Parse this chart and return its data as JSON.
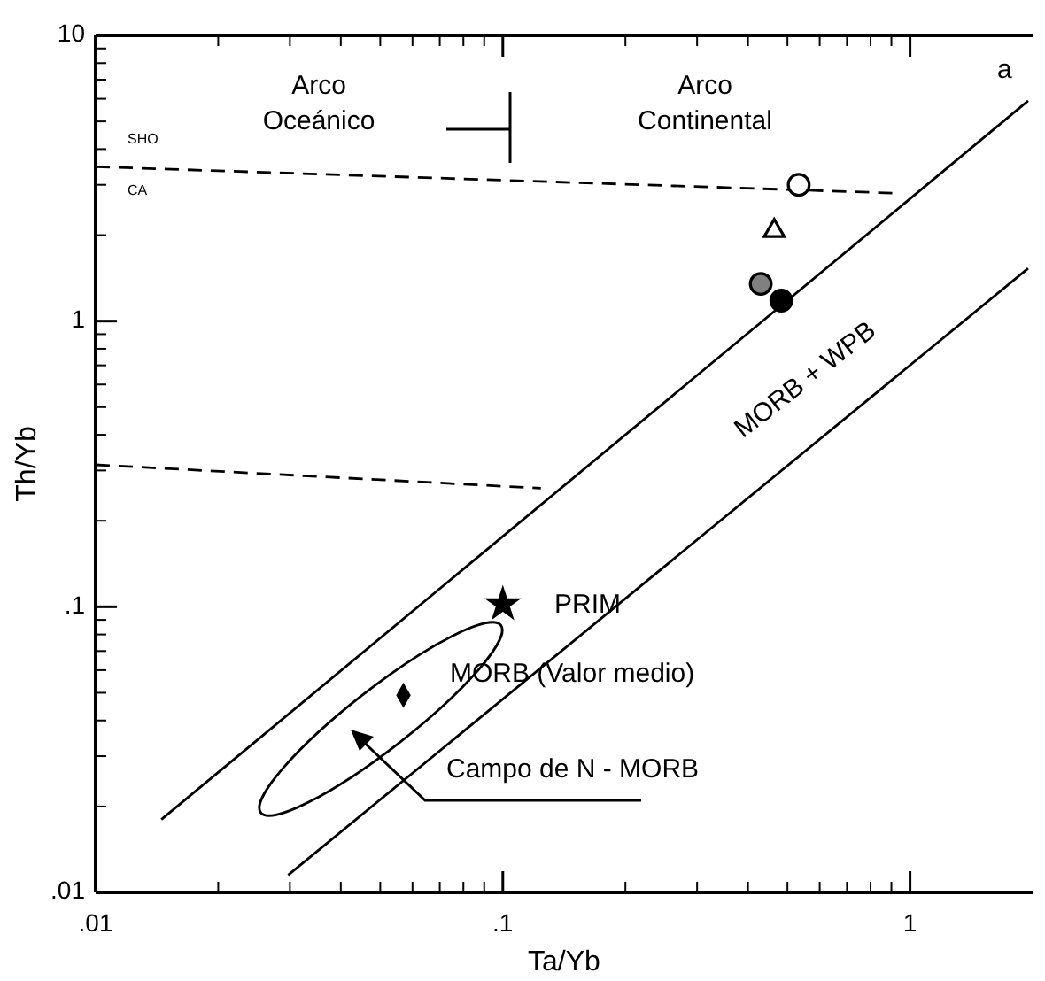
{
  "chart_data": {
    "type": "scatter",
    "xlabel": "Ta/Yb",
    "ylabel": "Th/Yb",
    "log": "xy",
    "grid": false,
    "xlim": [
      0.01,
      2
    ],
    "ylim": [
      0.01,
      10
    ],
    "xticks": [
      {
        "value": 0.01,
        "label": ".01"
      },
      {
        "value": 0.1,
        "label": ".1"
      },
      1
    ],
    "yticks": [
      {
        "value": 0.01,
        "label": ".01"
      },
      {
        "value": 0.1,
        "label": ".1"
      },
      1,
      10
    ],
    "series": [
      {
        "type": "line",
        "color": "#000000",
        "line_style": "solid",
        "x": [
          0.0145,
          1.95
        ],
        "values": [
          0.018,
          5.9
        ]
      },
      {
        "type": "line",
        "color": "#000000",
        "line_style": "solid",
        "x": [
          0.0297,
          1.95
        ],
        "values": [
          0.0115,
          1.53
        ]
      },
      {
        "type": "line",
        "color": "#000000",
        "line_style": "dashed",
        "x": [
          0.01,
          0.95
        ],
        "values": [
          3.47,
          2.8
        ]
      },
      {
        "type": "line",
        "color": "#000000",
        "line_style": "dashed",
        "x": [
          0.01,
          0.124
        ],
        "values": [
          0.314,
          0.26
        ]
      },
      {
        "marker": "circle",
        "color": "#ffffff",
        "x": [
          0.533
        ],
        "values": [
          3.0
        ]
      },
      {
        "marker": "triangle",
        "color": "#ffffff",
        "x": [
          0.464
        ],
        "values": [
          2.07
        ]
      },
      {
        "marker": "circle",
        "color": "#808080",
        "x": [
          0.43
        ],
        "values": [
          1.35
        ]
      },
      {
        "marker": "circle",
        "color": "#000000",
        "x": [
          0.483
        ],
        "values": [
          1.18
        ]
      },
      {
        "marker": "star",
        "color": "#000000",
        "x": [
          0.1
        ],
        "values": [
          0.102
        ]
      },
      {
        "marker": "diamond",
        "color": "#000000",
        "x": [
          0.057
        ],
        "values": [
          0.049
        ]
      }
    ],
    "annotations": [
      "Arco\nOceánico",
      "Arco\nContinental",
      "SHO",
      "CA",
      "a",
      "PRIM",
      "MORB (Valor medio)",
      "Campo de N - MORB",
      "MORB + WPB"
    ]
  }
}
